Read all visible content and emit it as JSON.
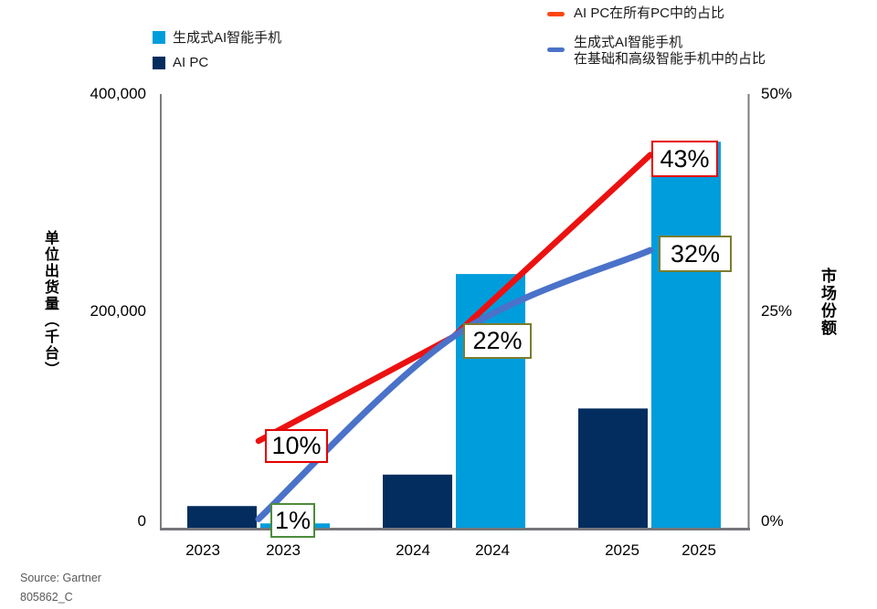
{
  "legend_bars": [
    {
      "label": "生成式AI智能手机",
      "color": "#009ddc"
    },
    {
      "label": "AI PC",
      "color": "#032d5e"
    }
  ],
  "legend_lines": [
    {
      "label": "AI PC在所有PC中的占比",
      "color": "#ff4713"
    },
    {
      "label_line1": "生成式AI智能手机",
      "label_line2": "在基础和高级智能手机中的占比",
      "color": "#4a72c9"
    }
  ],
  "left_axis": {
    "title": "单位出货量（千台）",
    "ticks": [
      "400,000",
      "200,000",
      "0"
    ]
  },
  "right_axis": {
    "title": "市场份额",
    "ticks": [
      "50%",
      "25%",
      "0%"
    ]
  },
  "x_labels": [
    "2023",
    "2023",
    "2024",
    "2024",
    "2025",
    "2025"
  ],
  "source_line1": "Source: Gartner",
  "source_line2": "805862_C",
  "chart_data": {
    "type": "bar",
    "subtype": "combo bar + line, dual axis",
    "categories": [
      "2023",
      "2024",
      "2025"
    ],
    "bar_series": [
      {
        "name": "生成式AI智能手机",
        "color": "#009ddc",
        "values": [
          4000,
          234000,
          356000
        ]
      },
      {
        "name": "AI PC",
        "color": "#032d5e",
        "values": [
          20000,
          49000,
          110000
        ]
      }
    ],
    "line_series": [
      {
        "name": "AI PC在所有PC中的占比",
        "color": "#ec1111",
        "values_pct": [
          10,
          22,
          43
        ]
      },
      {
        "name": "生成式AI智能手机在基础和高级智能手机中的占比",
        "color": "#4a72c9",
        "values_pct": [
          1,
          22,
          32
        ]
      }
    ],
    "annotations": [
      {
        "text": "10%",
        "border": "#e60000"
      },
      {
        "text": "1%",
        "border": "#4c8c3c"
      },
      {
        "text": "22%",
        "border": "#7a7d2e"
      },
      {
        "text": "43%",
        "border": "#e60000"
      },
      {
        "text": "32%",
        "border": "#7a7d2e"
      }
    ],
    "left_ylabel": "单位出货量（千台）",
    "right_ylabel": "市场份额",
    "left_ylim": [
      0,
      400000
    ],
    "right_ylim_pct": [
      0,
      50
    ],
    "grid": "off",
    "legend_position": "top"
  }
}
